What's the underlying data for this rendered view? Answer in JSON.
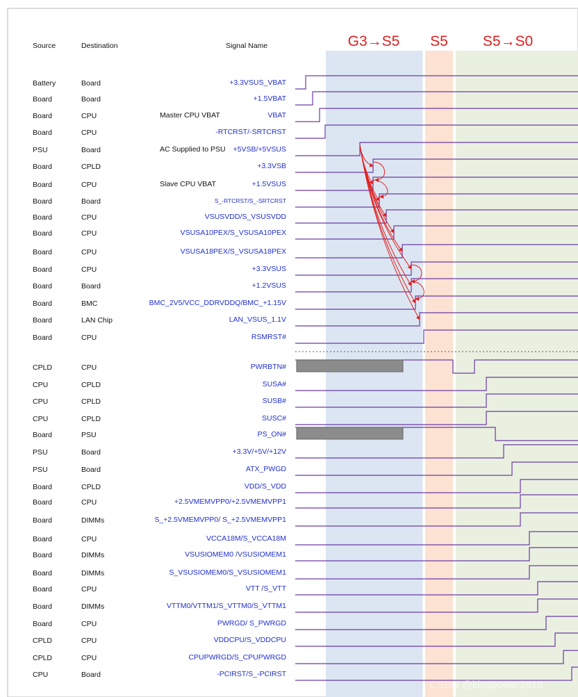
{
  "headers": {
    "source": "Source",
    "destination": "Destination",
    "signal": "Signal Name"
  },
  "phases": [
    {
      "label": "G3→S5",
      "color": "#dce6f2"
    },
    {
      "label": "S5",
      "color": "#fbe2d2"
    },
    {
      "label": "S5→S0",
      "color": "#eaf0e0"
    }
  ],
  "colors": {
    "wave": "#6a3aa6",
    "phase_text": "#e11d1d",
    "signal_text": "#1f2fcf",
    "arrow": "#e02020",
    "bar": "#8c8c8c"
  },
  "rows": [
    {
      "source": "Battery",
      "dest": "Board",
      "note": "",
      "signal": "+3.3VSUS_VBAT",
      "edge": 440
    },
    {
      "source": "Board",
      "dest": "Board",
      "note": "",
      "signal": "+1.5VBAT",
      "edge": 450
    },
    {
      "source": "Board",
      "dest": "CPU",
      "note": "Master CPU VBAT",
      "signal": "VBAT",
      "edge": 460
    },
    {
      "source": "Board",
      "dest": "CPU",
      "note": "",
      "signal": "-RTCRST/-SRTCRST",
      "edge": 468
    },
    {
      "source": "PSU",
      "dest": "Board",
      "note": "AC Supplied to PSU",
      "signal": "+5VSB/+5VSUS",
      "edge": 518
    },
    {
      "source": "Board",
      "dest": "CPLD",
      "note": "",
      "signal": "+3.3VSB",
      "edge": 537
    },
    {
      "source": "Board",
      "dest": "CPU",
      "note": "Slave CPU VBAT",
      "signal": "+1.5VSUS",
      "edge": 537
    },
    {
      "source": "Board",
      "dest": "Board",
      "note": "",
      "signal": "S_-RTCRST/S_-SRTCRST",
      "edge": 546,
      "small": true
    },
    {
      "source": "Board",
      "dest": "CPU",
      "note": "",
      "signal": "VSUSVDD/S_VSUSVDD",
      "edge": 556
    },
    {
      "source": "Board",
      "dest": "CPU",
      "note": "",
      "signal": "VSUSA10PEX/S_VSUSA10PEX",
      "edge": 567
    },
    {
      "source": "Board",
      "dest": "CPU",
      "note": "",
      "signal": "VSUSA18PEX/S_VSUSA18PEX",
      "edge": 579
    },
    {
      "source": "Board",
      "dest": "CPU",
      "note": "",
      "signal": "+3.3VSUS",
      "edge": 592
    },
    {
      "source": "Board",
      "dest": "Board",
      "note": "",
      "signal": "+1.2VSUS",
      "edge": 592
    },
    {
      "source": "Board",
      "dest": "BMC",
      "note": "",
      "signal": "BMC_2V5/VCC_DDRVDDQ/BMC_+1.15V",
      "edge": 598
    },
    {
      "source": "Board",
      "dest": "LAN Chip",
      "note": "",
      "signal": "LAN_VSUS_1.1V",
      "edge": 604
    },
    {
      "source": "Board",
      "dest": "CPU",
      "note": "",
      "signal": "RSMRST#",
      "edge": 610
    },
    {
      "source": "CPLD",
      "dest": "CPU",
      "note": "",
      "signal": "PWRBTN#",
      "pulse": true,
      "bar": true
    },
    {
      "source": "CPU",
      "dest": "CPLD",
      "note": "",
      "signal": "SUSA#",
      "edge": 700
    },
    {
      "source": "CPU",
      "dest": "CPLD",
      "note": "",
      "signal": "SUSB#",
      "edge": 700
    },
    {
      "source": "CPU",
      "dest": "CPLD",
      "note": "",
      "signal": "SUSC#",
      "edge": 700
    },
    {
      "source": "Board",
      "dest": "PSU",
      "note": "",
      "signal": "PS_ON#",
      "edge": 713,
      "falling": true,
      "bar": true
    },
    {
      "source": "PSU",
      "dest": "Board",
      "note": "",
      "signal": "+3.3V/+5V/+12V",
      "edge": 725
    },
    {
      "source": "PSU",
      "dest": "Board",
      "note": "",
      "signal": "ATX_PWGD",
      "edge": 737
    },
    {
      "source": "Board",
      "dest": "CPLD",
      "note": "",
      "signal": "VDD/S_VDD",
      "edge": 749
    },
    {
      "source": "Board",
      "dest": "CPU",
      "note": "",
      "signal": "+2.5VMEMVPP0/+2.5VMEMVPP1",
      "edge": 749
    },
    {
      "source": "Board",
      "dest": "DIMMs",
      "note": "",
      "signal": "S_+2.5VMEMVPP0/ S_+2.5VMEMVPP1",
      "edge": 749
    },
    {
      "source": "Board",
      "dest": "CPU",
      "note": "",
      "signal": "VCCA18M/S_VCCA18M",
      "edge": 762
    },
    {
      "source": "Board",
      "dest": "DIMMs",
      "note": "",
      "signal": "VSUSIOMEM0 /VSUSIOMEM1",
      "edge": 762
    },
    {
      "source": "Board",
      "dest": "DIMMs",
      "note": "",
      "signal": "S_VSUSIOMEM0/S_VSUSIOMEM1",
      "edge": 762
    },
    {
      "source": "Board",
      "dest": "CPU",
      "note": "",
      "signal": "VTT /S_VTT",
      "edge": 774
    },
    {
      "source": "Board",
      "dest": "DIMMs",
      "note": "",
      "signal": "VTTM0/VTTM1/S_VTTM0/S_VTTM1",
      "edge": 774
    },
    {
      "source": "Board",
      "dest": "CPU",
      "note": "",
      "signal": "PWRGD/ S_PWRGD",
      "edge": 786
    },
    {
      "source": "CPLD",
      "dest": "CPU",
      "note": "",
      "signal": "VDDCPU/S_VDDCPU",
      "edge": 799
    },
    {
      "source": "CPLD",
      "dest": "CPU",
      "note": "",
      "signal": "CPUPWRGD/S_CPUPWRGD",
      "edge": 811
    },
    {
      "source": "CPU",
      "dest": "Board",
      "note": "",
      "signal": "-PCIRST/S_-PCIRST",
      "edge": 823
    }
  ],
  "watermark": "CSDN @kingpower2018"
}
